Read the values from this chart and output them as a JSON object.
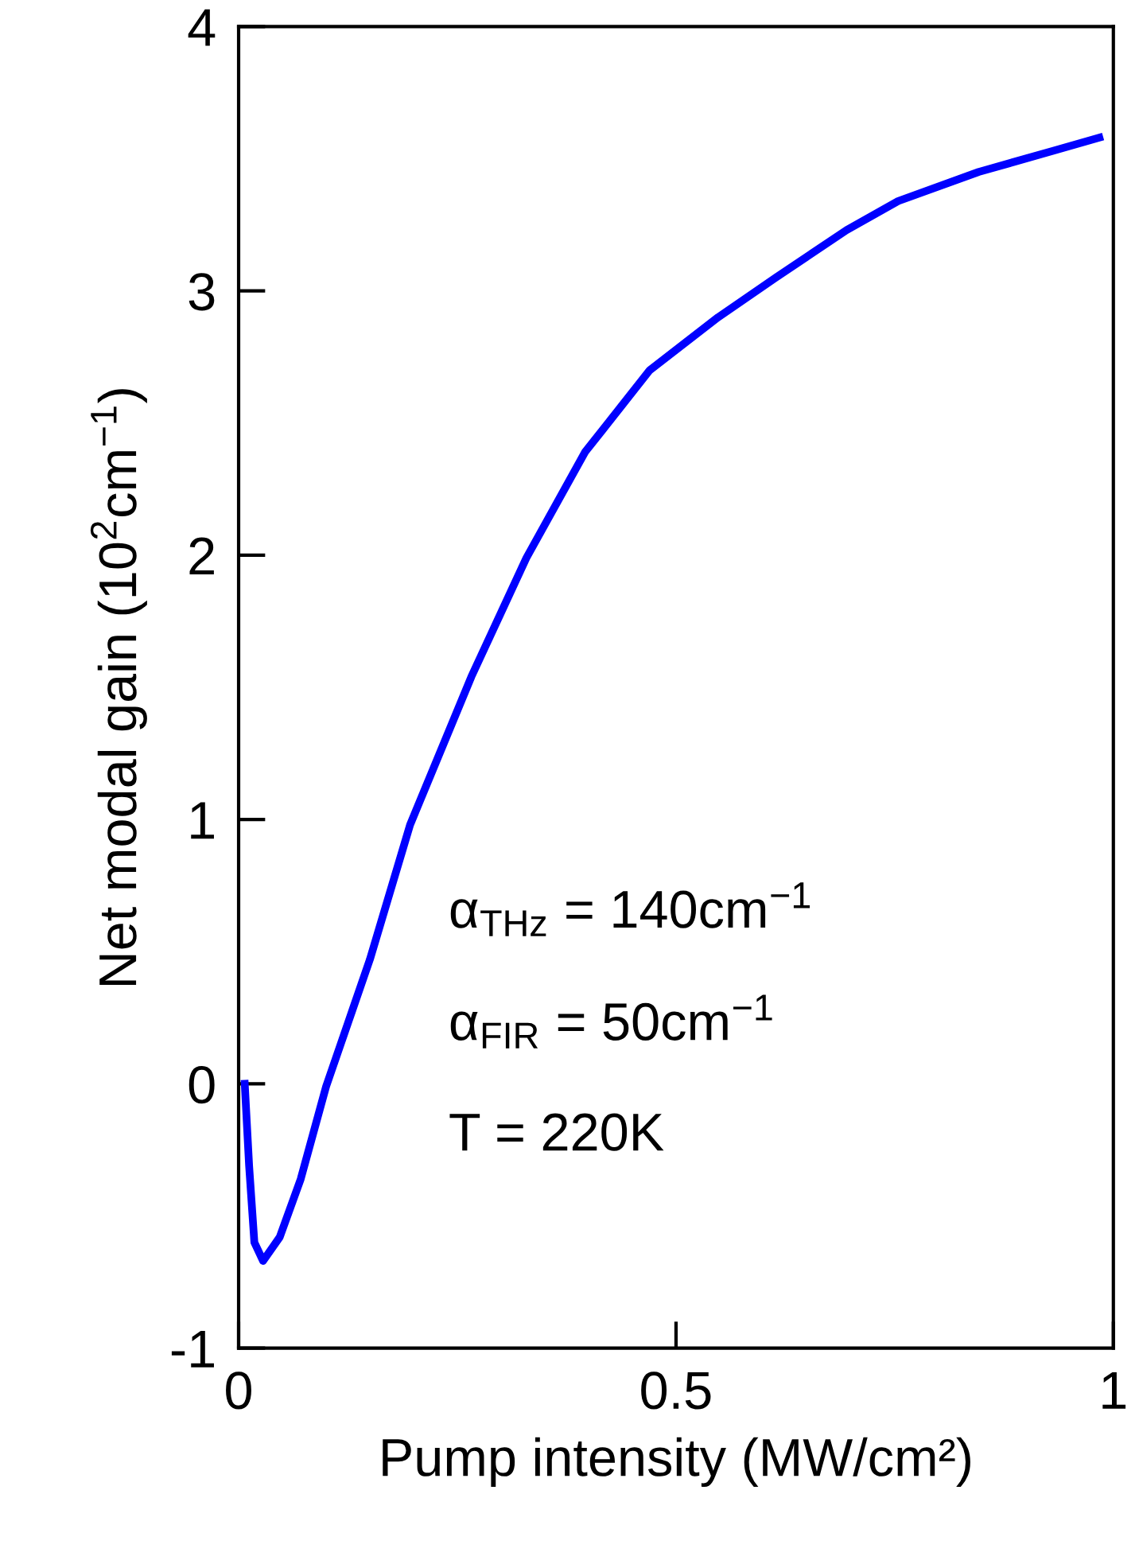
{
  "chart_data": {
    "type": "line",
    "xlabel": "Pump intensity (MW/cm²)",
    "ylabel": "Net modal gain (10$^{2}$cm$^{−1}$)",
    "x": [
      0.007,
      0.012,
      0.018,
      0.028,
      0.047,
      0.071,
      0.1,
      0.125,
      0.15,
      0.196,
      0.266,
      0.329,
      0.396,
      0.47,
      0.548,
      0.614,
      0.695,
      0.754,
      0.846,
      0.931,
      0.984
    ],
    "series": [
      {
        "color": "#0000ff",
        "values": [
          0.0,
          -0.31,
          -0.6,
          -0.67,
          -0.58,
          -0.36,
          -0.01,
          0.23,
          0.47,
          0.98,
          1.54,
          1.99,
          2.39,
          2.7,
          2.9,
          3.05,
          3.23,
          3.34,
          3.45,
          3.53,
          3.58
        ]
      }
    ],
    "xlim": [
      0,
      1
    ],
    "ylim": [
      -1,
      4
    ],
    "xticks": [
      0,
      0.5,
      1
    ],
    "yticks": [
      -1,
      0,
      1,
      2,
      3,
      4
    ],
    "annotations": [
      "α$_{THz}$ = 140cm$^{−1}$",
      "α$_{FIR}$ = 50cm$^{−1}$",
      "T = 220K"
    ],
    "grid": false,
    "legend": false,
    "marker": "none",
    "line_style": "solid"
  }
}
